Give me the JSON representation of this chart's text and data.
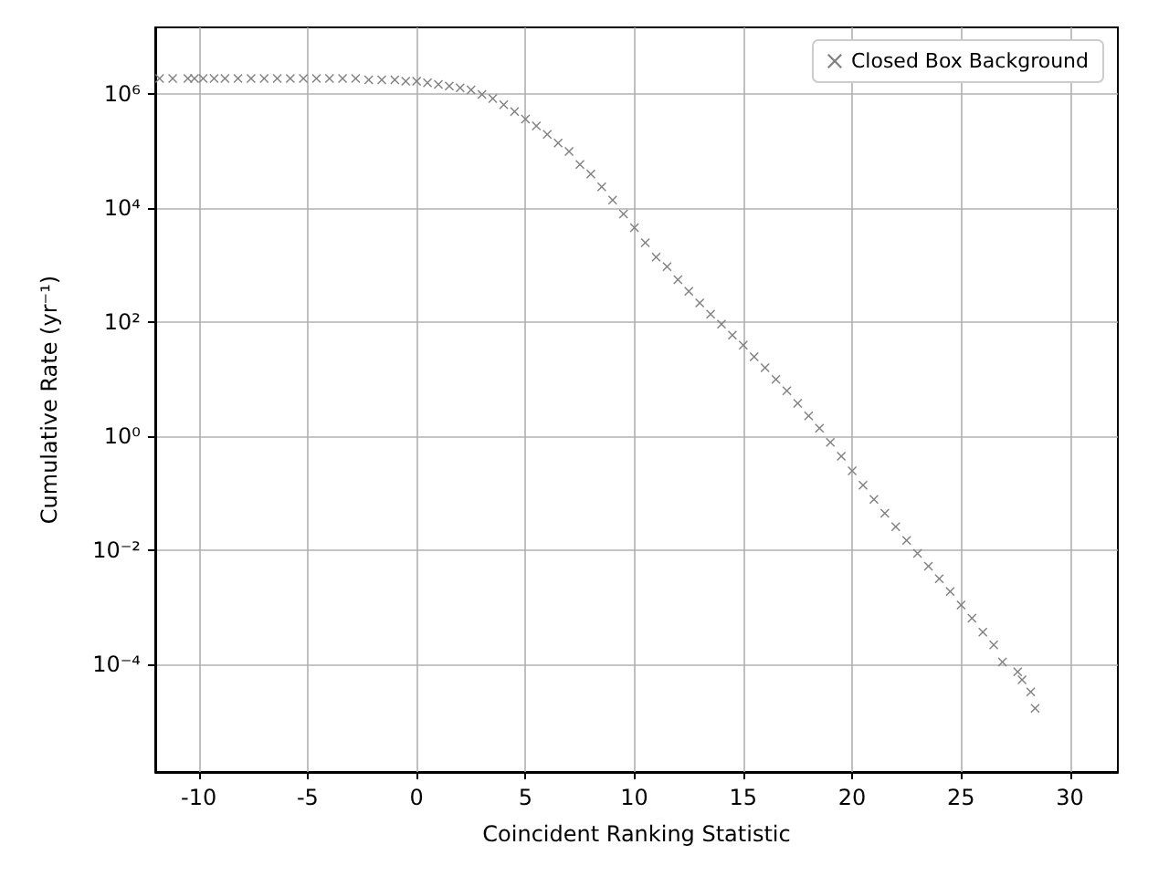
{
  "chart_data": {
    "type": "scatter",
    "xlabel": "Coincident Ranking Statistic",
    "ylabel": "Cumulative Rate (yr⁻¹)",
    "log": "y",
    "grid": true,
    "legend": "top right",
    "marker": "cross",
    "xlim": [
      -12,
      32.2
    ],
    "xticks": [
      -10,
      -5,
      0,
      5,
      10,
      15,
      20,
      25,
      30
    ],
    "ylim": [
      1.3e-06,
      15000000
    ],
    "yticks": [
      {
        "value": 1000000,
        "label": "10⁶"
      },
      {
        "value": 10000,
        "label": "10⁴"
      },
      {
        "value": 100,
        "label": "10²"
      },
      {
        "value": 1,
        "label": "10⁰"
      },
      {
        "value": 0.01,
        "label": "10⁻²"
      },
      {
        "value": 0.0001,
        "label": "10⁻⁴"
      }
    ],
    "series": [
      {
        "name": "Closed Box Background",
        "color": "#808080",
        "x": [
          -11.8,
          -11.2,
          -10.5,
          -10.2,
          -9.8,
          -9.3,
          -8.8,
          -8.2,
          -7.6,
          -7,
          -6.4,
          -5.8,
          -5.2,
          -4.6,
          -4,
          -3.4,
          -2.8,
          -2.2,
          -1.6,
          -1,
          -0.5,
          0,
          0.5,
          1,
          1.5,
          2,
          2.5,
          3,
          3.5,
          4,
          4.5,
          5,
          5.5,
          6,
          6.5,
          7,
          7.5,
          8,
          8.5,
          9,
          9.5,
          10,
          10.5,
          11,
          11.5,
          12,
          12.5,
          13,
          13.5,
          14,
          14.5,
          15,
          15.5,
          16,
          16.5,
          17,
          17.5,
          18,
          18.5,
          19,
          19.5,
          20,
          20.5,
          21,
          21.5,
          22,
          22.5,
          23,
          23.5,
          24,
          24.5,
          25,
          25.5,
          26,
          26.5,
          26.9,
          27.6,
          27.8,
          28.2,
          28.4
        ],
        "values": [
          1900000,
          1900000,
          1900000,
          1900000,
          1900000,
          1900000,
          1900000,
          1900000,
          1900000,
          1900000,
          1900000,
          1900000,
          1900000,
          1900000,
          1900000,
          1900000,
          1900000,
          1800000,
          1800000,
          1800000,
          1700000,
          1700000,
          1600000,
          1500000,
          1400000,
          1300000,
          1200000,
          1000000,
          850000,
          660000,
          500000,
          370000,
          280000,
          200000,
          140000,
          100000,
          59000,
          40000,
          24000,
          14000,
          8000,
          4600,
          2500,
          1400,
          950,
          560,
          350,
          220,
          140,
          93,
          60,
          40,
          25,
          16,
          10,
          6.3,
          3.8,
          2.3,
          1.4,
          0.79,
          0.45,
          0.25,
          0.14,
          0.079,
          0.045,
          0.026,
          0.015,
          0.0089,
          0.0053,
          0.0032,
          0.0019,
          0.0011,
          0.00065,
          0.00037,
          0.00022,
          0.00011,
          7.4e-05,
          5.4e-05,
          3.3e-05,
          1.7e-05
        ]
      }
    ]
  }
}
